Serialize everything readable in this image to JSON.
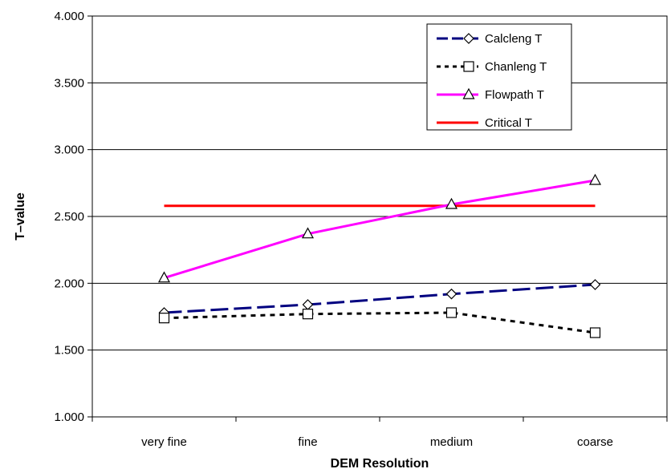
{
  "chart_data": {
    "type": "line",
    "title": "",
    "xlabel": "DEM Resolution",
    "ylabel": "T–value",
    "categories": [
      "very fine",
      "fine",
      "medium",
      "coarse"
    ],
    "ylim": [
      1.0,
      4.0
    ],
    "ytick_values": [
      1.0,
      1.5,
      2.0,
      2.5,
      3.0,
      3.5,
      4.0
    ],
    "ytick_labels": [
      "1.000",
      "1.500",
      "2.000",
      "2.500",
      "3.000",
      "3.500",
      "4.000"
    ],
    "grid": "horizontal",
    "legend_position": "top-right",
    "series": [
      {
        "name": "Calcleng T",
        "values": [
          1.78,
          1.84,
          1.92,
          1.99
        ],
        "color": "#000080",
        "style": "long-dash",
        "marker": "diamond"
      },
      {
        "name": "Chanleng T",
        "values": [
          1.74,
          1.77,
          1.78,
          1.63
        ],
        "color": "#000000",
        "style": "dotted",
        "marker": "square"
      },
      {
        "name": "Flowpath T",
        "values": [
          2.04,
          2.37,
          2.59,
          2.77
        ],
        "color": "#FF00FF",
        "style": "solid",
        "marker": "triangle"
      },
      {
        "name": "Critical T",
        "values": [
          2.58,
          2.58,
          2.58,
          2.58
        ],
        "color": "#FF0000",
        "style": "solid",
        "marker": "none"
      }
    ]
  }
}
